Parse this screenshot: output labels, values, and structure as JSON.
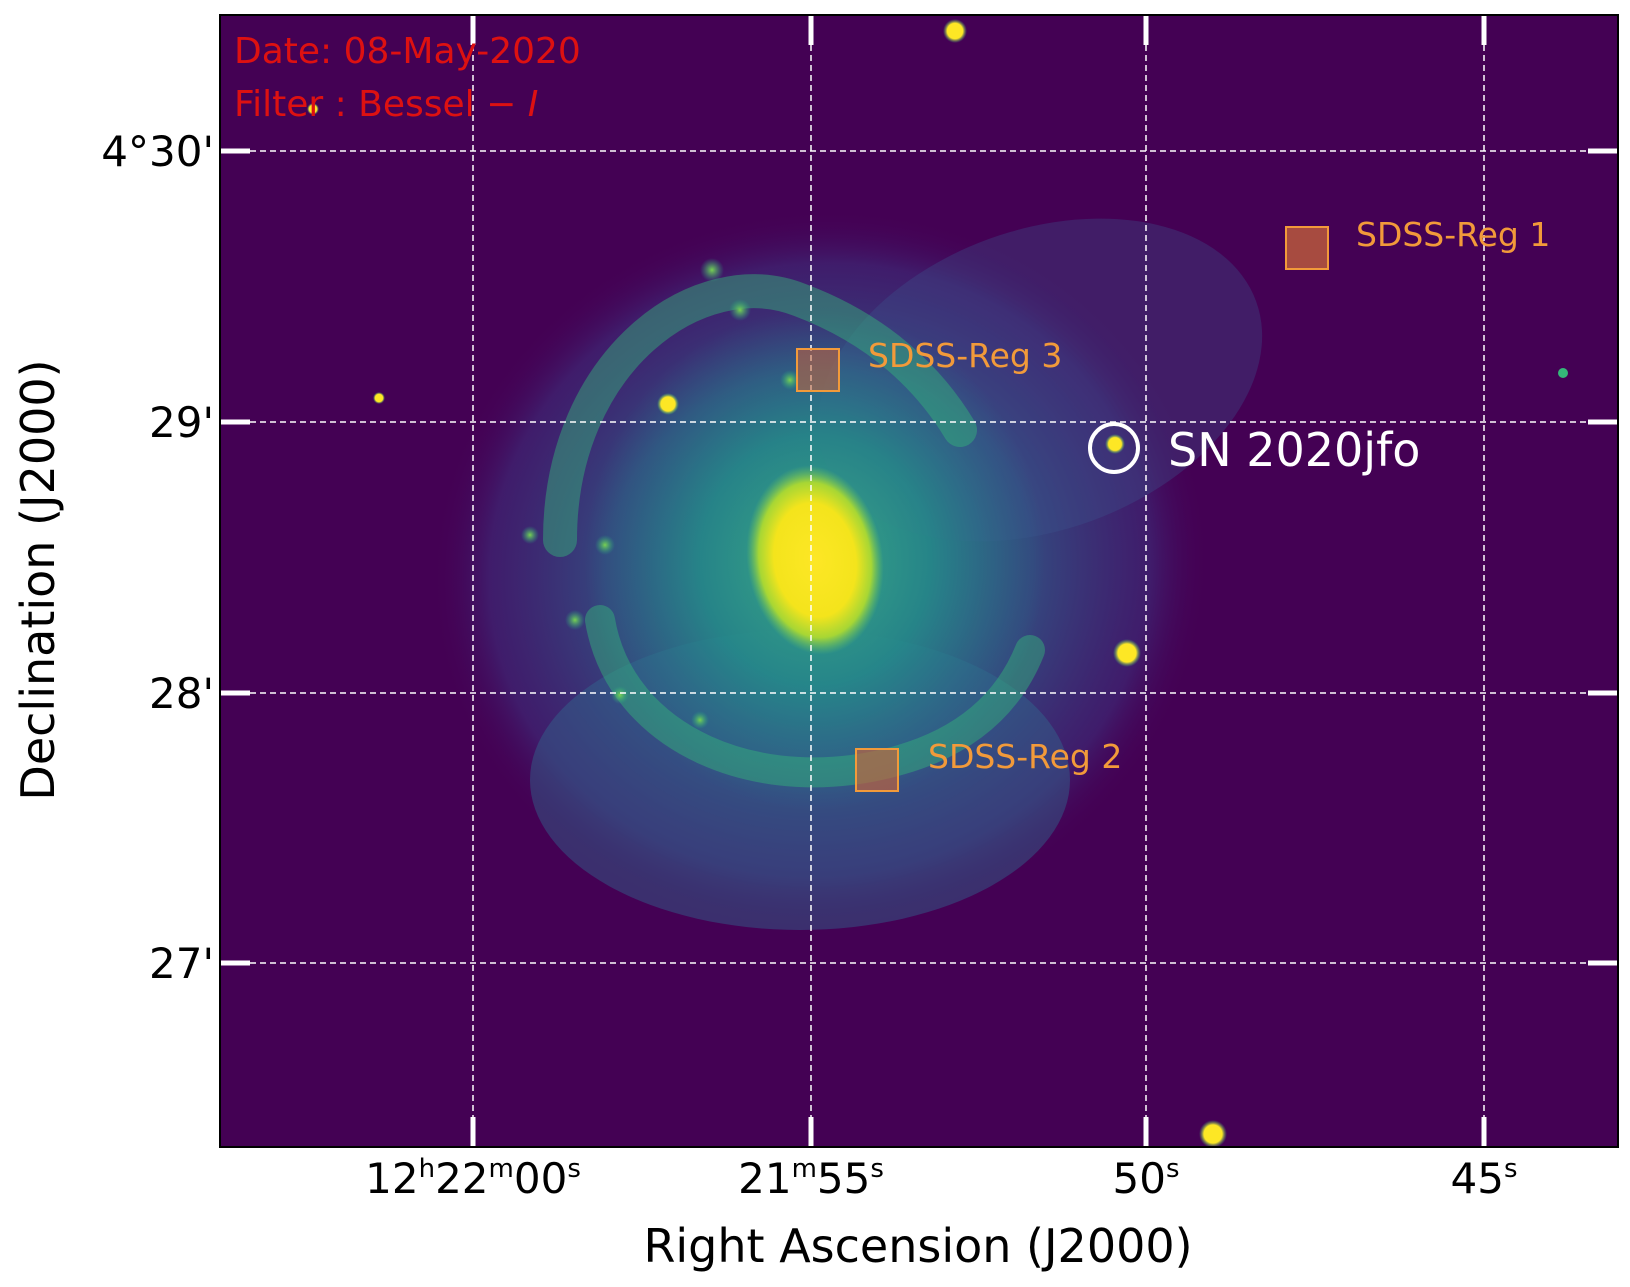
{
  "image": {
    "date_text": "Date: 08-May-2020",
    "filter_prefix": "Filter : Bessel − ",
    "filter_band": "I",
    "annotation_color": "#dd1111",
    "background_color": "#440154",
    "colormap": "viridis",
    "grid": "on",
    "grid_style": "dashed white"
  },
  "axes": {
    "xlabel": "Right Ascension (J2000)",
    "ylabel": "Declination (J2000)",
    "x_ticks": [
      {
        "parts": [
          {
            "t": "12"
          },
          {
            "t": "h",
            "sup": true
          },
          {
            "t": "22"
          },
          {
            "t": "m",
            "sup": true
          },
          {
            "t": "00"
          },
          {
            "t": "s",
            "sup": true
          }
        ]
      },
      {
        "parts": [
          {
            "t": "21"
          },
          {
            "t": "m",
            "sup": true
          },
          {
            "t": "55"
          },
          {
            "t": "s",
            "sup": true
          }
        ]
      },
      {
        "parts": [
          {
            "t": "50"
          },
          {
            "t": "s",
            "sup": true
          }
        ]
      },
      {
        "parts": [
          {
            "t": "45"
          },
          {
            "t": "s",
            "sup": true
          }
        ]
      }
    ],
    "y_ticks": [
      "4°30'",
      "29'",
      "28'",
      "27'"
    ]
  },
  "targets": {
    "supernova": {
      "label": "SN 2020jfo",
      "color": "#ffffff"
    },
    "regions": [
      {
        "label": "SDSS-Reg 1",
        "color": "#f29a3a"
      },
      {
        "label": "SDSS-Reg 2",
        "color": "#f29a3a"
      },
      {
        "label": "SDSS-Reg 3",
        "color": "#f29a3a"
      }
    ]
  }
}
